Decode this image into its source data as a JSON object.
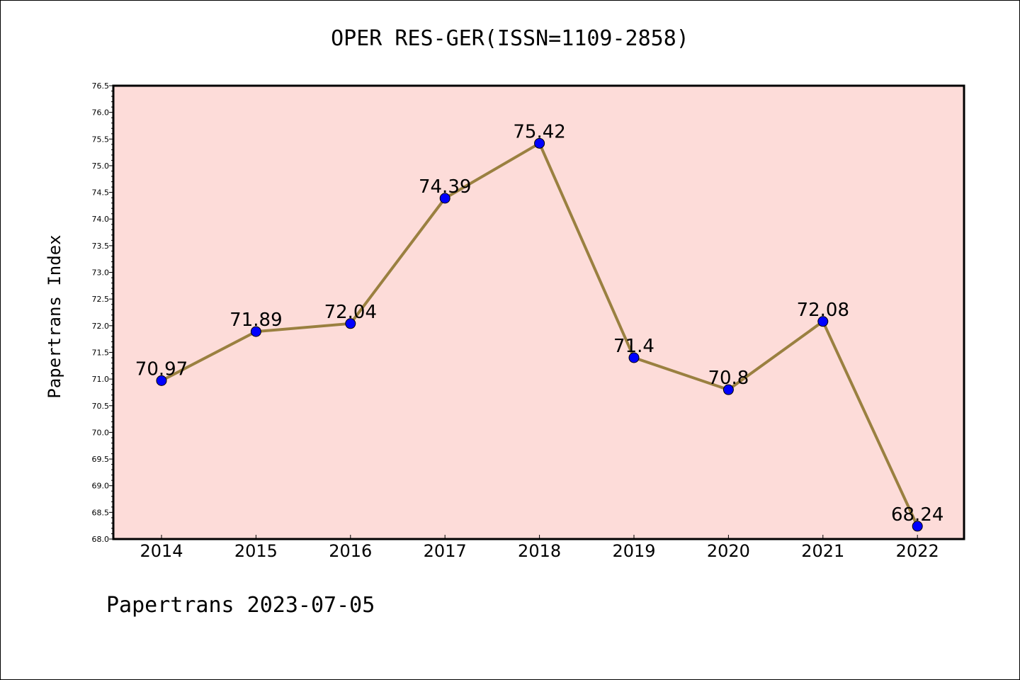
{
  "title": "OPER RES-GER(ISSN=1109-2858)",
  "ylabel": "Papertrans Index",
  "footer": "Papertrans 2023-07-05",
  "colors": {
    "plot_background": "#fddcd9",
    "line": "#9a8040",
    "marker": "#0000ff"
  },
  "chart_data": {
    "type": "line",
    "title": "OPER RES-GER(ISSN=1109-2858)",
    "xlabel": "",
    "ylabel": "Papertrans Index",
    "categories": [
      "2014",
      "2015",
      "2016",
      "2017",
      "2018",
      "2019",
      "2020",
      "2021",
      "2022"
    ],
    "series": [
      {
        "values": [
          70.97,
          71.89,
          72.04,
          74.39,
          75.42,
          71.4,
          70.8,
          72.08,
          68.24
        ],
        "labels": [
          "70.97",
          "71.89",
          "72.04",
          "74.39",
          "75.42",
          "71.4",
          "70.8",
          "72.08",
          "68.24"
        ]
      }
    ],
    "ylim": [
      68.0,
      76.5
    ],
    "yticks": [
      "68.0",
      "68.5",
      "69.0",
      "69.5",
      "70.0",
      "70.5",
      "71.0",
      "71.5",
      "72.0",
      "72.5",
      "73.0",
      "73.5",
      "74.0",
      "74.5",
      "75.0",
      "75.5",
      "76.0",
      "76.5"
    ],
    "grid": false,
    "legend": "none"
  }
}
